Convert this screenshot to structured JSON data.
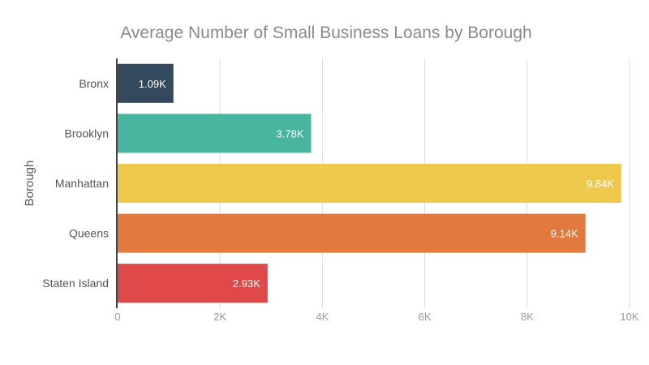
{
  "chart_data": {
    "type": "bar",
    "orientation": "horizontal",
    "title": "Average Number of Small Business Loans by Borough",
    "xlabel": "",
    "ylabel": "Borough",
    "categories": [
      "Bronx",
      "Brooklyn",
      "Manhattan",
      "Queens",
      "Staten Island"
    ],
    "values": [
      1090,
      3780,
      9840,
      9140,
      2930
    ],
    "data_labels": [
      "1.09K",
      "3.78K",
      "9.84K",
      "9.14K",
      "2.93K"
    ],
    "colors": [
      "#34495e",
      "#48b5a0",
      "#efc94c",
      "#e27a3f",
      "#df4949"
    ],
    "xlim": [
      0,
      10000
    ],
    "x_ticks": [
      0,
      2000,
      4000,
      6000,
      8000,
      10000
    ],
    "x_tick_labels": [
      "0",
      "2K",
      "4K",
      "6K",
      "8K",
      "10K"
    ],
    "grid": true,
    "legend": "none"
  }
}
